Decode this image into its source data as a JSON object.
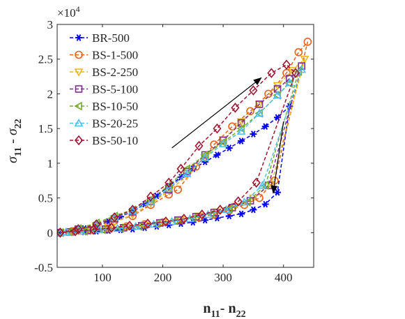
{
  "chart_data": {
    "type": "line",
    "title": "",
    "xlabel": {
      "main": "n",
      "sub1": "11",
      "mid": "- n",
      "sub2": "22"
    },
    "ylabel": {
      "main": "σ",
      "sub1": "11",
      "mid": " - σ",
      "sub2": "22"
    },
    "x_ticks": [
      "100",
      "200",
      "300",
      "400"
    ],
    "x_tick_values": [
      100,
      200,
      300,
      400
    ],
    "y_ticks": [
      "-0.5",
      "0",
      "0.5",
      "1",
      "1.5",
      "2",
      "2.5",
      "3"
    ],
    "y_tick_values": [
      -0.5,
      0,
      0.5,
      1,
      1.5,
      2,
      2.5,
      3
    ],
    "y_multiplier": {
      "base": "×10",
      "exp": "4"
    },
    "xlim": [
      25,
      450
    ],
    "ylim": [
      -0.5,
      3
    ],
    "legend_position": "top-left",
    "series": [
      {
        "name": "BR-500",
        "color": "#0000ff",
        "marker": "asterisk",
        "x": [
          30,
          50,
          70,
          90,
          110,
          130,
          150,
          170,
          190,
          210,
          230,
          250,
          270,
          290,
          310,
          330,
          350,
          370,
          390,
          410,
          390,
          370,
          350,
          330,
          310,
          290,
          270,
          250,
          230,
          210,
          190,
          170,
          150,
          130,
          110,
          90,
          70,
          50,
          30
        ],
        "y": [
          0,
          0.03,
          0.06,
          0.1,
          0.16,
          0.23,
          0.31,
          0.41,
          0.53,
          0.67,
          0.8,
          0.92,
          1.02,
          1.12,
          1.22,
          1.32,
          1.42,
          1.53,
          1.66,
          1.82,
          0.58,
          0.41,
          0.33,
          0.27,
          0.24,
          0.21,
          0.18,
          0.15,
          0.13,
          0.11,
          0.09,
          0.07,
          0.05,
          0.04,
          0.03,
          0.02,
          0.01,
          0.005,
          0
        ]
      },
      {
        "name": "BS-1-500",
        "color": "#e8621a",
        "marker": "circle",
        "x": [
          30,
          60,
          90,
          120,
          150,
          180,
          210,
          225,
          255,
          285,
          315,
          345,
          375,
          405,
          425,
          440,
          385,
          360,
          335,
          310,
          285,
          260,
          230,
          200,
          170,
          140,
          110,
          80,
          50,
          30
        ],
        "y": [
          0,
          0.04,
          0.1,
          0.17,
          0.24,
          0.4,
          0.55,
          0.62,
          0.95,
          1.27,
          1.53,
          1.75,
          2.0,
          2.3,
          2.6,
          2.75,
          0.75,
          0.5,
          0.4,
          0.32,
          0.26,
          0.22,
          0.18,
          0.15,
          0.12,
          0.09,
          0.06,
          0.04,
          0.02,
          0
        ]
      },
      {
        "name": "BS-2-250",
        "color": "#e6b81e",
        "marker": "triangle-down",
        "x": [
          30,
          60,
          90,
          120,
          150,
          180,
          210,
          240,
          270,
          300,
          330,
          360,
          390,
          415,
          435,
          380,
          350,
          320,
          290,
          260,
          230,
          200,
          170,
          140,
          110,
          80,
          50,
          30
        ],
        "y": [
          0,
          0.03,
          0.08,
          0.15,
          0.26,
          0.42,
          0.6,
          0.82,
          1.08,
          1.34,
          1.6,
          1.85,
          2.12,
          2.34,
          2.5,
          0.7,
          0.5,
          0.38,
          0.3,
          0.24,
          0.19,
          0.15,
          0.11,
          0.08,
          0.05,
          0.03,
          0.01,
          0
        ]
      },
      {
        "name": "BS-5-100",
        "color": "#7e2f8e",
        "marker": "square",
        "x": [
          30,
          60,
          90,
          120,
          150,
          180,
          210,
          240,
          270,
          300,
          330,
          360,
          390,
          410,
          430,
          375,
          345,
          315,
          285,
          255,
          225,
          195,
          165,
          135,
          105,
          75,
          45,
          30
        ],
        "y": [
          0,
          0.05,
          0.1,
          0.2,
          0.3,
          0.45,
          0.62,
          0.88,
          1.12,
          1.33,
          1.58,
          1.85,
          2.07,
          2.22,
          2.4,
          0.68,
          0.46,
          0.36,
          0.29,
          0.23,
          0.18,
          0.14,
          0.1,
          0.07,
          0.05,
          0.03,
          0.01,
          0
        ]
      },
      {
        "name": "BS-10-50",
        "color": "#77ac30",
        "marker": "triangle-left",
        "x": [
          30,
          60,
          90,
          120,
          150,
          180,
          210,
          240,
          270,
          300,
          330,
          360,
          390,
          410,
          425,
          370,
          340,
          310,
          280,
          250,
          220,
          190,
          160,
          130,
          100,
          70,
          45,
          30
        ],
        "y": [
          0,
          0.06,
          0.14,
          0.24,
          0.33,
          0.48,
          0.68,
          0.92,
          1.12,
          1.3,
          1.5,
          1.72,
          1.98,
          2.15,
          2.32,
          0.68,
          0.44,
          0.34,
          0.27,
          0.21,
          0.17,
          0.13,
          0.09,
          0.06,
          0.04,
          0.02,
          0.01,
          0
        ]
      },
      {
        "name": "BS-20-25",
        "color": "#4dbeee",
        "marker": "triangle-up",
        "x": [
          30,
          60,
          90,
          120,
          150,
          180,
          210,
          240,
          270,
          300,
          330,
          360,
          390,
          410,
          430,
          365,
          335,
          305,
          275,
          245,
          215,
          185,
          155,
          125,
          95,
          65,
          40,
          30
        ],
        "y": [
          0,
          0.05,
          0.12,
          0.22,
          0.31,
          0.44,
          0.64,
          0.85,
          1.08,
          1.28,
          1.46,
          1.72,
          1.98,
          2.16,
          2.35,
          0.68,
          0.44,
          0.33,
          0.26,
          0.2,
          0.16,
          0.12,
          0.09,
          0.06,
          0.04,
          0.02,
          0.01,
          0
        ]
      },
      {
        "name": "BS-50-10",
        "color": "#a2142f",
        "marker": "diamond",
        "x": [
          30,
          60,
          90,
          120,
          150,
          180,
          210,
          230,
          260,
          290,
          320,
          350,
          380,
          405,
          420,
          355,
          325,
          295,
          265,
          235,
          205,
          175,
          145,
          115,
          85,
          55,
          30
        ],
        "y": [
          0,
          0.05,
          0.12,
          0.22,
          0.33,
          0.52,
          0.72,
          0.92,
          1.25,
          1.5,
          1.8,
          2.05,
          2.3,
          2.42,
          2.3,
          0.72,
          0.45,
          0.33,
          0.26,
          0.2,
          0.16,
          0.13,
          0.1,
          0.07,
          0.04,
          0.02,
          0
        ]
      }
    ],
    "annotations": [
      {
        "type": "arrow",
        "direction": "up-right",
        "from": [
          215,
          1.22
        ],
        "to": [
          363,
          2.23
        ]
      },
      {
        "type": "arrow",
        "direction": "down",
        "from": [
          400,
          1.6
        ],
        "to": [
          383,
          0.57
        ]
      }
    ]
  }
}
